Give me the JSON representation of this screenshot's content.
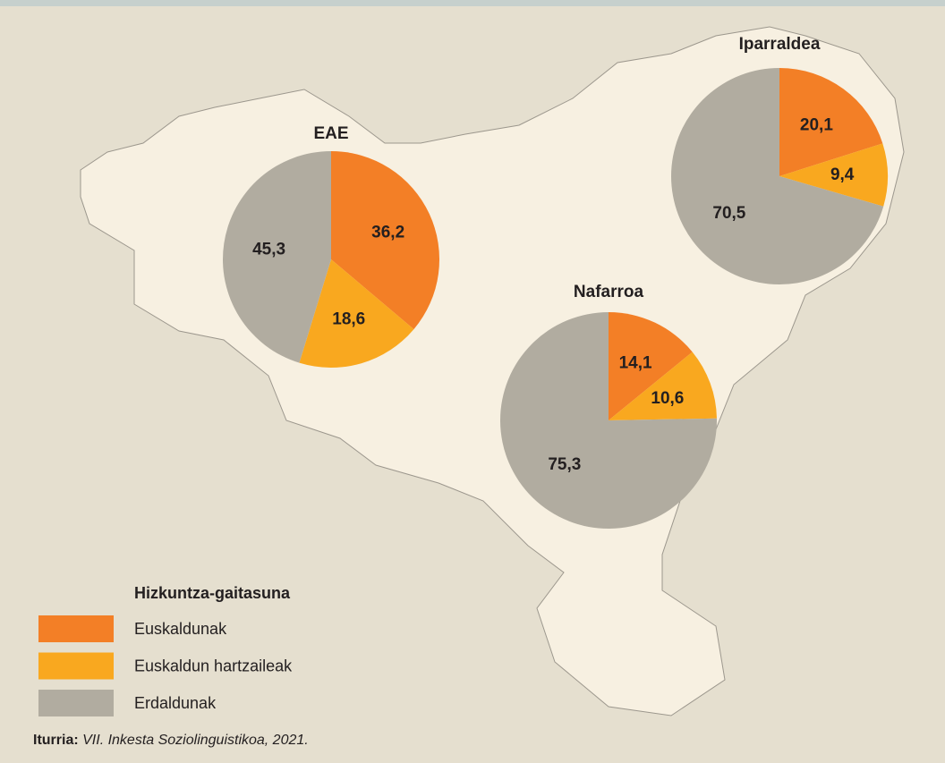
{
  "chart_data": [
    {
      "type": "pie",
      "title": "EAE",
      "values": [
        36.2,
        18.6,
        45.3
      ],
      "value_labels": [
        "36,2",
        "18,6",
        "45,3"
      ]
    },
    {
      "type": "pie",
      "title": "Iparraldea",
      "values": [
        20.1,
        9.4,
        70.5
      ],
      "value_labels": [
        "20,1",
        "9,4",
        "70,5"
      ]
    },
    {
      "type": "pie",
      "title": "Nafarroa",
      "values": [
        14.1,
        10.6,
        75.3
      ],
      "value_labels": [
        "14,1",
        "10,6",
        "75,3"
      ]
    }
  ],
  "legend": {
    "title": "Hizkuntza-gaitasuna",
    "categories": [
      "Euskaldunak",
      "Euskaldun hartzaileak",
      "Erdaldunak"
    ],
    "colors": [
      "#f37f26",
      "#f9a81f",
      "#b1aca0"
    ]
  },
  "source": {
    "label": "Iturria:",
    "text": "VII. Inkesta Soziolinguistikoa, 2021."
  }
}
